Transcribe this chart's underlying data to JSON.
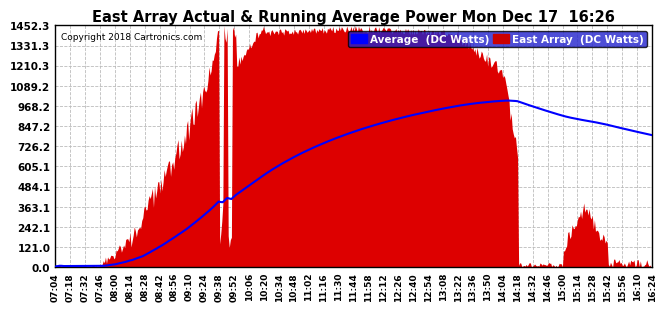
{
  "title": "East Array Actual & Running Average Power Mon Dec 17  16:26",
  "copyright": "Copyright 2018 Cartronics.com",
  "legend_labels": [
    "Average  (DC Watts)",
    "East Array  (DC Watts)"
  ],
  "legend_colors": [
    "#0000ff",
    "#cc0000"
  ],
  "yticks": [
    0.0,
    121.0,
    242.1,
    363.1,
    484.1,
    605.1,
    726.2,
    847.2,
    968.2,
    1089.2,
    1210.3,
    1331.3,
    1452.3
  ],
  "ymax": 1452.3,
  "ymin": 0.0,
  "bg_color": "#ffffff",
  "plot_bg_color": "#ffffff",
  "grid_color": "#bbbbbb",
  "fill_color": "#dd0000",
  "avg_line_color": "#0000ff",
  "xtick_labels": [
    "07:04",
    "07:18",
    "07:32",
    "07:46",
    "08:00",
    "08:14",
    "08:28",
    "08:42",
    "08:56",
    "09:10",
    "09:24",
    "09:38",
    "09:52",
    "10:06",
    "10:20",
    "10:34",
    "10:48",
    "11:02",
    "11:16",
    "11:30",
    "11:44",
    "11:58",
    "12:12",
    "12:26",
    "12:40",
    "12:54",
    "13:08",
    "13:22",
    "13:36",
    "13:50",
    "14:04",
    "14:18",
    "14:32",
    "14:46",
    "15:00",
    "15:14",
    "15:28",
    "15:42",
    "15:56",
    "16:10",
    "16:24"
  ]
}
